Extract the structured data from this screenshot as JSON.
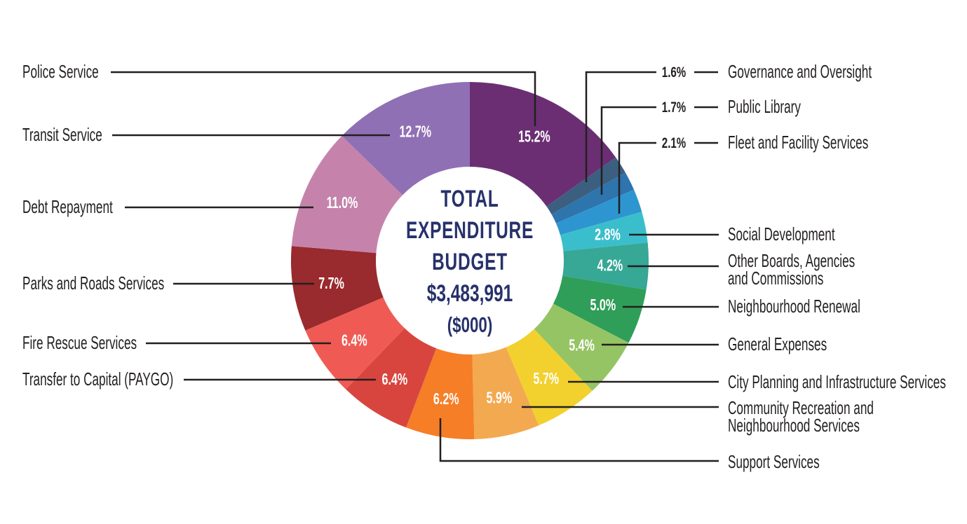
{
  "chart_data": {
    "type": "donut",
    "title": "TOTAL EXPENDITURE BUDGET",
    "center": {
      "title_lines": [
        "TOTAL",
        "EXPENDITURE",
        "BUDGET"
      ],
      "total": "$3,483,991",
      "unit": "($000)"
    },
    "legend_position": "callouts-left-and-right",
    "segments": [
      {
        "id": "police-service",
        "label": "Police Service",
        "value": 15.2,
        "pct_label": "15.2%",
        "color": "#6B2E73"
      },
      {
        "id": "governance-and-oversight",
        "label": "Governance and Oversight",
        "value": 1.6,
        "pct_label": "1.6%",
        "color": "#3C5F80"
      },
      {
        "id": "public-library",
        "label": "Public Library",
        "value": 1.7,
        "pct_label": "1.7%",
        "color": "#2E74AD"
      },
      {
        "id": "fleet-and-facility-services",
        "label": "Fleet and Facility Services",
        "value": 2.1,
        "pct_label": "2.1%",
        "color": "#2D96D0"
      },
      {
        "id": "social-development",
        "label": "Social Development",
        "value": 2.8,
        "pct_label": "2.8%",
        "color": "#3BBECB"
      },
      {
        "id": "other-boards-agencies-and-commissions",
        "label": "Other Boards, Agencies and Commissions",
        "label_lines": [
          "Other Boards, Agencies",
          "and Commissions"
        ],
        "value": 4.2,
        "pct_label": "4.2%",
        "color": "#37A796"
      },
      {
        "id": "neighbourhood-renewal",
        "label": "Neighbourhood Renewal",
        "value": 5.0,
        "pct_label": "5.0%",
        "color": "#2F9E58"
      },
      {
        "id": "general-expenses",
        "label": "General Expenses",
        "value": 5.4,
        "pct_label": "5.4%",
        "color": "#95C464"
      },
      {
        "id": "city-planning-and-infrastructure-services",
        "label": "City Planning and Infrastructure Services",
        "value": 5.7,
        "pct_label": "5.7%",
        "color": "#F2D12F"
      },
      {
        "id": "community-recreation-and-neighbourhood-services",
        "label": "Community Recreation and Neighbourhood Services",
        "label_lines": [
          "Community Recreation and",
          "Neighbourhood Services"
        ],
        "value": 5.9,
        "pct_label": "5.9%",
        "color": "#F3A94F"
      },
      {
        "id": "support-services",
        "label": "Support Services",
        "value": 6.2,
        "pct_label": "6.2%",
        "color": "#F57E27"
      },
      {
        "id": "transfer-to-capital-paygo",
        "label": "Transfer to Capital (PAYGO)",
        "value": 6.4,
        "pct_label": "6.4%",
        "color": "#D8453F"
      },
      {
        "id": "fire-rescue-services",
        "label": "Fire Rescue Services",
        "value": 6.4,
        "pct_label": "6.4%",
        "color": "#EF5B54"
      },
      {
        "id": "parks-and-roads-services",
        "label": "Parks and Roads Services",
        "value": 7.7,
        "pct_label": "7.7%",
        "color": "#992A2D"
      },
      {
        "id": "debt-repayment",
        "label": "Debt Repayment",
        "value": 11.0,
        "pct_label": "11.0%",
        "color": "#C583AB"
      },
      {
        "id": "transit-service",
        "label": "Transit Service",
        "value": 12.7,
        "pct_label": "12.7%",
        "color": "#9070B4"
      }
    ],
    "colors": {
      "background": "#FFFFFF",
      "label_text": "#231F20",
      "leader_line": "#231F20",
      "center_text": "#27316B",
      "slice_pct_text": "#FFFFFF"
    }
  }
}
